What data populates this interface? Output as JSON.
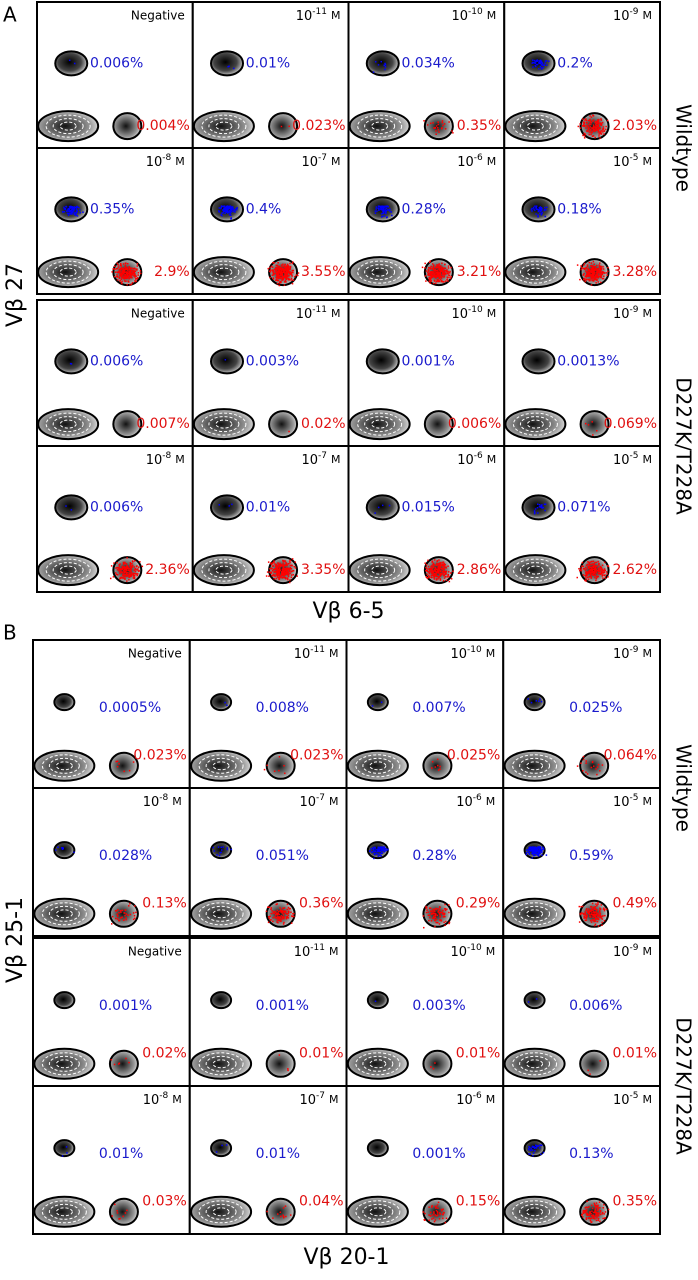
{
  "panels": [
    {
      "label": "A",
      "y_axis": "Vβ 27",
      "x_axis": "Vβ 6-5",
      "groups": [
        {
          "name": "Wildtype",
          "plots": [
            {
              "conc": {
                "text": "Negative"
              },
              "blue": "0.006%",
              "red": "0.004%"
            },
            {
              "conc": {
                "base": "10",
                "exp": "-11",
                "unit": "M"
              },
              "blue": "0.01%",
              "red": "0.023%"
            },
            {
              "conc": {
                "base": "10",
                "exp": "-10",
                "unit": "M"
              },
              "blue": "0.034%",
              "red": "0.35%"
            },
            {
              "conc": {
                "base": "10",
                "exp": "-9",
                "unit": "M"
              },
              "blue": "0.2%",
              "red": "2.03%"
            },
            {
              "conc": {
                "base": "10",
                "exp": "-8",
                "unit": "M"
              },
              "blue": "0.35%",
              "red": "2.9%"
            },
            {
              "conc": {
                "base": "10",
                "exp": "-7",
                "unit": "M"
              },
              "blue": "0.4%",
              "red": "3.55%"
            },
            {
              "conc": {
                "base": "10",
                "exp": "-6",
                "unit": "M"
              },
              "blue": "0.28%",
              "red": "3.21%"
            },
            {
              "conc": {
                "base": "10",
                "exp": "-5",
                "unit": "M"
              },
              "blue": "0.18%",
              "red": "3.28%"
            }
          ]
        },
        {
          "name": "D227K/T228A",
          "plots": [
            {
              "conc": {
                "text": "Negative"
              },
              "blue": "0.006%",
              "red": "0.007%"
            },
            {
              "conc": {
                "base": "10",
                "exp": "-11",
                "unit": "M"
              },
              "blue": "0.003%",
              "red": "0.02%"
            },
            {
              "conc": {
                "base": "10",
                "exp": "-10",
                "unit": "M"
              },
              "blue": "0.001%",
              "red": "0.006%"
            },
            {
              "conc": {
                "base": "10",
                "exp": "-9",
                "unit": "M"
              },
              "blue": "0.0013%",
              "red": "0.069%"
            },
            {
              "conc": {
                "base": "10",
                "exp": "-8",
                "unit": "M"
              },
              "blue": "0.006%",
              "red": "2.36%"
            },
            {
              "conc": {
                "base": "10",
                "exp": "-7",
                "unit": "M"
              },
              "blue": "0.01%",
              "red": "3.35%"
            },
            {
              "conc": {
                "base": "10",
                "exp": "-6",
                "unit": "M"
              },
              "blue": "0.015%",
              "red": "2.86%"
            },
            {
              "conc": {
                "base": "10",
                "exp": "-5",
                "unit": "M"
              },
              "blue": "0.071%",
              "red": "2.62%"
            }
          ]
        }
      ]
    },
    {
      "label": "B",
      "y_axis": "Vβ 25-1",
      "x_axis": "Vβ 20-1",
      "groups": [
        {
          "name": "Wildtype",
          "plots": [
            {
              "conc": {
                "text": "Negative"
              },
              "blue": "0.0005%",
              "red": "0.023%"
            },
            {
              "conc": {
                "base": "10",
                "exp": "-11",
                "unit": "M"
              },
              "blue": "0.008%",
              "red": "0.023%"
            },
            {
              "conc": {
                "base": "10",
                "exp": "-10",
                "unit": "M"
              },
              "blue": "0.007%",
              "red": "0.025%"
            },
            {
              "conc": {
                "base": "10",
                "exp": "-9",
                "unit": "M"
              },
              "blue": "0.025%",
              "red": "0.064%"
            },
            {
              "conc": {
                "base": "10",
                "exp": "-8",
                "unit": "M"
              },
              "blue": "0.028%",
              "red": "0.13%"
            },
            {
              "conc": {
                "base": "10",
                "exp": "-7",
                "unit": "M"
              },
              "blue": "0.051%",
              "red": "0.36%"
            },
            {
              "conc": {
                "base": "10",
                "exp": "-6",
                "unit": "M"
              },
              "blue": "0.28%",
              "red": "0.29%"
            },
            {
              "conc": {
                "base": "10",
                "exp": "-5",
                "unit": "M"
              },
              "blue": "0.59%",
              "red": "0.49%"
            }
          ]
        },
        {
          "name": "D227K/T228A",
          "plots": [
            {
              "conc": {
                "text": "Negative"
              },
              "blue": "0.001%",
              "red": "0.02%"
            },
            {
              "conc": {
                "base": "10",
                "exp": "-11",
                "unit": "M"
              },
              "blue": "0.001%",
              "red": "0.01%"
            },
            {
              "conc": {
                "base": "10",
                "exp": "-10",
                "unit": "M"
              },
              "blue": "0.003%",
              "red": "0.01%"
            },
            {
              "conc": {
                "base": "10",
                "exp": "-9",
                "unit": "M"
              },
              "blue": "0.006%",
              "red": "0.01%"
            },
            {
              "conc": {
                "base": "10",
                "exp": "-8",
                "unit": "M"
              },
              "blue": "0.01%",
              "red": "0.03%"
            },
            {
              "conc": {
                "base": "10",
                "exp": "-7",
                "unit": "M"
              },
              "blue": "0.01%",
              "red": "0.04%"
            },
            {
              "conc": {
                "base": "10",
                "exp": "-6",
                "unit": "M"
              },
              "blue": "0.001%",
              "red": "0.15%"
            },
            {
              "conc": {
                "base": "10",
                "exp": "-5",
                "unit": "M"
              },
              "blue": "0.13%",
              "red": "0.35%"
            }
          ]
        }
      ]
    }
  ]
}
